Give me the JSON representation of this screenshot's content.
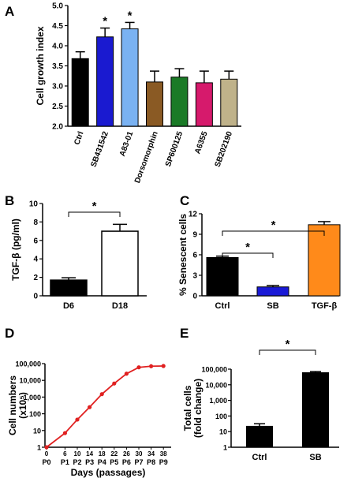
{
  "chart_data": [
    {
      "id": "A",
      "panel_label": "A",
      "type": "bar",
      "ylabel": "Cell growth index",
      "ylim": [
        2.0,
        5.0
      ],
      "yticks": [
        "2.0",
        "2.5",
        "3.0",
        "3.5",
        "4.0",
        "4.5",
        "5.0"
      ],
      "categories": [
        "Ctrl",
        "SB431542",
        "A83-01",
        "Dorsomorphin",
        "SP600125",
        "A6355",
        "SB202190"
      ],
      "values": [
        3.68,
        4.22,
        4.42,
        3.1,
        3.22,
        3.08,
        3.17
      ],
      "errors": [
        0.17,
        0.22,
        0.16,
        0.27,
        0.21,
        0.29,
        0.2
      ],
      "colors": [
        "#000000",
        "#1a1ad0",
        "#7ab2f2",
        "#8a5a24",
        "#1a7a26",
        "#d61a6c",
        "#bfb28a"
      ],
      "significance": [
        "",
        "*",
        "*",
        "",
        "",
        "",
        ""
      ]
    },
    {
      "id": "B",
      "panel_label": "B",
      "type": "bar",
      "ylabel": "TGF-β (pg/ml)",
      "ylim": [
        0,
        10
      ],
      "yticks": [
        "0",
        "2",
        "4",
        "6",
        "8",
        "10"
      ],
      "categories": [
        "D6",
        "D18"
      ],
      "values": [
        1.7,
        7.0
      ],
      "errors": [
        0.25,
        0.75
      ],
      "colors": [
        "#000000",
        "#ffffff"
      ],
      "brackets": [
        {
          "from": 0,
          "to": 1,
          "label": "*"
        }
      ]
    },
    {
      "id": "C",
      "panel_label": "C",
      "type": "bar",
      "ylabel": "% Senescent cells",
      "ylim": [
        0,
        12
      ],
      "yticks": [
        "0",
        "3",
        "6",
        "9",
        "12"
      ],
      "categories": [
        "Ctrl",
        "SB",
        "TGF-β"
      ],
      "values": [
        5.6,
        1.3,
        10.4
      ],
      "errors": [
        0.2,
        0.2,
        0.45
      ],
      "colors": [
        "#000000",
        "#1a1ad6",
        "#ff8a1a"
      ],
      "brackets": [
        {
          "from": 0,
          "to": 1,
          "label": "*"
        },
        {
          "from": 0,
          "to": 2,
          "label": "*"
        }
      ]
    },
    {
      "id": "D",
      "panel_label": "D",
      "type": "line",
      "xlabel": "Days (passages)",
      "ylabel": "Cell numbers (x10⁵)",
      "ylabel_lines": [
        "Cell numbers",
        "(x10⁵)"
      ],
      "yscale": "log",
      "ylim": [
        1,
        100000
      ],
      "yticks": [
        "1",
        "10",
        "100",
        "1,000",
        "10,000",
        "100,000"
      ],
      "xlim": [
        0,
        40
      ],
      "xticks_days": [
        "0",
        "6",
        "10",
        "14",
        "18",
        "22",
        "26",
        "30",
        "34",
        "38"
      ],
      "xticks_passages": [
        "P0",
        "P1",
        "P2",
        "P3",
        "P4",
        "P5",
        "P6",
        "P7",
        "P8",
        "P9"
      ],
      "series": [
        {
          "x": [
            0,
            6,
            10,
            14,
            18,
            22,
            26,
            30,
            34,
            38
          ],
          "y": [
            1,
            7,
            45,
            250,
            1500,
            6500,
            25000,
            60000,
            70000,
            72000
          ],
          "color": "#e02020"
        }
      ]
    },
    {
      "id": "E",
      "panel_label": "E",
      "type": "bar",
      "ylabel": "Total cells (fold change)",
      "ylabel_lines": [
        "Total cells",
        "(fold change)"
      ],
      "yscale": "log",
      "ylim": [
        1,
        100000
      ],
      "yticks": [
        "1",
        "10",
        "100",
        "1,000",
        "10,000",
        "100,000"
      ],
      "categories": [
        "Ctrl",
        "SB"
      ],
      "values": [
        22,
        60000
      ],
      "errors_upper": [
        32,
        70000
      ],
      "colors": [
        "#000000",
        "#000000"
      ],
      "brackets": [
        {
          "from": 0,
          "to": 1,
          "label": "*"
        }
      ]
    }
  ]
}
